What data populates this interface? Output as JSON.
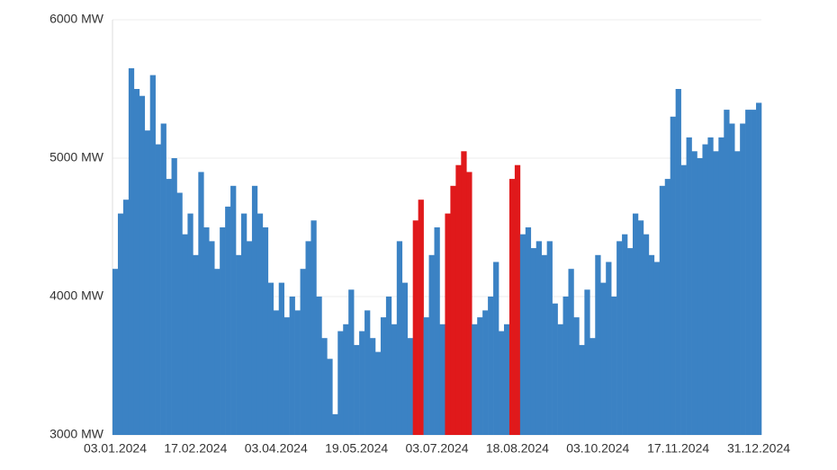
{
  "chart_data": {
    "type": "bar",
    "categories": [
      "03.01.2024",
      null,
      null,
      null,
      null,
      null,
      null,
      null,
      null,
      null,
      null,
      null,
      null,
      null,
      null,
      "17.02.2024",
      null,
      null,
      null,
      null,
      null,
      null,
      null,
      null,
      null,
      null,
      null,
      null,
      null,
      null,
      "03.04.2024",
      null,
      null,
      null,
      null,
      null,
      null,
      null,
      null,
      null,
      null,
      null,
      null,
      null,
      null,
      "19.05.2024",
      null,
      null,
      null,
      null,
      null,
      null,
      null,
      null,
      null,
      null,
      null,
      null,
      null,
      null,
      "03.07.2024",
      null,
      null,
      null,
      null,
      null,
      null,
      null,
      null,
      null,
      null,
      null,
      null,
      null,
      null,
      "18.08.2024",
      null,
      null,
      null,
      null,
      null,
      null,
      null,
      null,
      null,
      null,
      null,
      null,
      null,
      null,
      "03.10.2024",
      null,
      null,
      null,
      null,
      null,
      null,
      null,
      null,
      null,
      null,
      null,
      null,
      null,
      null,
      "17.11.2024",
      null,
      null,
      null,
      null,
      null,
      null,
      null,
      null,
      null,
      null,
      null,
      null,
      null,
      null,
      "31.12.2024"
    ],
    "values": [
      4200,
      4600,
      4700,
      5650,
      5500,
      5450,
      5200,
      5600,
      5100,
      5250,
      4850,
      5000,
      4750,
      4450,
      4600,
      4300,
      4900,
      4500,
      4400,
      4200,
      4500,
      4650,
      4800,
      4300,
      4600,
      4400,
      4800,
      4600,
      4500,
      4100,
      3900,
      4100,
      3850,
      4000,
      3900,
      4200,
      4400,
      4550,
      4000,
      3700,
      3550,
      3150,
      3750,
      3800,
      4050,
      3650,
      3750,
      3900,
      3700,
      3600,
      3850,
      4000,
      3800,
      4400,
      4100,
      3700,
      4550,
      4700,
      3850,
      4300,
      4500,
      3800,
      4600,
      4800,
      4950,
      5050,
      4900,
      3800,
      3850,
      3900,
      4000,
      4250,
      3750,
      3800,
      4850,
      4950,
      4450,
      4500,
      4350,
      4400,
      4300,
      4400,
      3950,
      3800,
      4000,
      4200,
      3850,
      3650,
      4050,
      3700,
      4300,
      4100,
      4250,
      4000,
      4400,
      4450,
      4350,
      4600,
      4550,
      4450,
      4300,
      4250,
      4800,
      4850,
      5300,
      5500,
      4950,
      5150,
      5050,
      5000,
      5100,
      5150,
      5050,
      5150,
      5350,
      5250,
      5050,
      5250,
      5350,
      5350,
      5400
    ],
    "colors": [
      "#3b82c4",
      "#3b82c4",
      "#3b82c4",
      "#3b82c4",
      "#3b82c4",
      "#3b82c4",
      "#3b82c4",
      "#3b82c4",
      "#3b82c4",
      "#3b82c4",
      "#3b82c4",
      "#3b82c4",
      "#3b82c4",
      "#3b82c4",
      "#3b82c4",
      "#3b82c4",
      "#3b82c4",
      "#3b82c4",
      "#3b82c4",
      "#3b82c4",
      "#3b82c4",
      "#3b82c4",
      "#3b82c4",
      "#3b82c4",
      "#3b82c4",
      "#3b82c4",
      "#3b82c4",
      "#3b82c4",
      "#3b82c4",
      "#3b82c4",
      "#3b82c4",
      "#3b82c4",
      "#3b82c4",
      "#3b82c4",
      "#3b82c4",
      "#3b82c4",
      "#3b82c4",
      "#3b82c4",
      "#3b82c4",
      "#3b82c4",
      "#3b82c4",
      "#3b82c4",
      "#3b82c4",
      "#3b82c4",
      "#3b82c4",
      "#3b82c4",
      "#3b82c4",
      "#3b82c4",
      "#3b82c4",
      "#3b82c4",
      "#3b82c4",
      "#3b82c4",
      "#3b82c4",
      "#3b82c4",
      "#3b82c4",
      "#3b82c4",
      "#e0191b",
      "#e0191b",
      "#3b82c4",
      "#3b82c4",
      "#3b82c4",
      "#3b82c4",
      "#e0191b",
      "#e0191b",
      "#e0191b",
      "#e0191b",
      "#e0191b",
      "#3b82c4",
      "#3b82c4",
      "#3b82c4",
      "#3b82c4",
      "#3b82c4",
      "#3b82c4",
      "#3b82c4",
      "#e0191b",
      "#e0191b",
      "#3b82c4",
      "#3b82c4",
      "#3b82c4",
      "#3b82c4",
      "#3b82c4",
      "#3b82c4",
      "#3b82c4",
      "#3b82c4",
      "#3b82c4",
      "#3b82c4",
      "#3b82c4",
      "#3b82c4",
      "#3b82c4",
      "#3b82c4",
      "#3b82c4",
      "#3b82c4",
      "#3b82c4",
      "#3b82c4",
      "#3b82c4",
      "#3b82c4",
      "#3b82c4",
      "#3b82c4",
      "#3b82c4",
      "#3b82c4",
      "#3b82c4",
      "#3b82c4",
      "#3b82c4",
      "#3b82c4",
      "#3b82c4",
      "#3b82c4",
      "#3b82c4",
      "#3b82c4",
      "#3b82c4",
      "#3b82c4",
      "#3b82c4",
      "#3b82c4",
      "#3b82c4",
      "#3b82c4",
      "#3b82c4",
      "#3b82c4",
      "#3b82c4",
      "#3b82c4",
      "#3b82c4",
      "#3b82c4",
      "#3b82c4"
    ],
    "ylim": [
      3000,
      6000
    ],
    "yticks": [
      {
        "value": 3000,
        "label": "3000 MW"
      },
      {
        "value": 4000,
        "label": "4000 MW"
      },
      {
        "value": 5000,
        "label": "5000 MW"
      },
      {
        "value": 6000,
        "label": "6000 MW"
      }
    ],
    "grid": true
  }
}
